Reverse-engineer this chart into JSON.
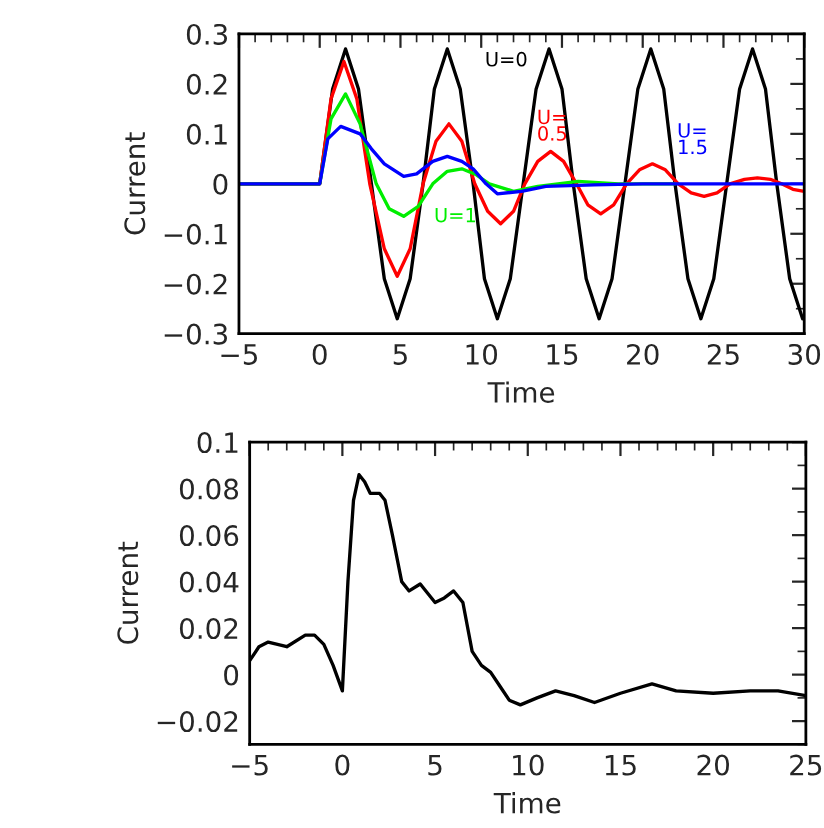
{
  "chart_data": [
    {
      "type": "line",
      "xlabel": "Time",
      "ylabel": "Current",
      "xlim": [
        -5,
        30
      ],
      "ylim": [
        -0.3,
        0.3
      ],
      "xticks": [
        {
          "value": -5,
          "label": "−5"
        },
        0,
        5,
        10,
        15,
        20,
        25,
        30
      ],
      "yticks": [
        {
          "value": -0.3,
          "label": "−0.3"
        },
        {
          "value": -0.2,
          "label": "−0.2"
        },
        {
          "value": -0.1,
          "label": "−0.1"
        },
        0,
        0.1,
        0.2,
        0.3
      ],
      "grid": false,
      "legend": false,
      "series": [
        {
          "name": "U=0",
          "color": "#000000",
          "x": [
            -5,
            0,
            0.8,
            1.6,
            2.4,
            3.2,
            4.0,
            4.8,
            5.6,
            6.4,
            7.1,
            7.9,
            8.7,
            9.5,
            10.2,
            11.0,
            11.8,
            12.6,
            13.4,
            14.2,
            15.0,
            15.7,
            16.5,
            17.3,
            18.1,
            18.9,
            19.7,
            20.5,
            21.3,
            22.0,
            22.8,
            23.6,
            24.4,
            25.2,
            26.0,
            26.8,
            27.6,
            28.3,
            29.1,
            29.9,
            30
          ],
          "values": [
            0,
            0,
            0.19,
            0.27,
            0.19,
            0,
            -0.19,
            -0.27,
            -0.19,
            0,
            0.19,
            0.27,
            0.19,
            0,
            -0.19,
            -0.27,
            -0.19,
            0,
            0.19,
            0.27,
            0.19,
            0,
            -0.19,
            -0.27,
            -0.19,
            0,
            0.19,
            0.27,
            0.19,
            0,
            -0.19,
            -0.27,
            -0.19,
            0,
            0.19,
            0.27,
            0.19,
            0,
            -0.19,
            -0.27,
            -0.265
          ]
        },
        {
          "name": "U=\n0.5",
          "color": "#ff0000",
          "x": [
            -5,
            0,
            0.7,
            1.5,
            2.3,
            3.1,
            4.0,
            4.8,
            5.6,
            6.4,
            7.2,
            8.0,
            8.8,
            9.6,
            10.4,
            11.2,
            12.0,
            12.7,
            13.5,
            14.3,
            15.1,
            15.9,
            16.6,
            17.4,
            18.2,
            19.0,
            19.8,
            20.6,
            21.4,
            22.2,
            23.0,
            23.8,
            24.6,
            25.4,
            26.3,
            27.1,
            27.9,
            28.6,
            29.3,
            30
          ],
          "values": [
            0,
            0,
            0.17,
            0.245,
            0.17,
            0,
            -0.13,
            -0.185,
            -0.13,
            0,
            0.085,
            0.12,
            0.085,
            0,
            -0.055,
            -0.08,
            -0.055,
            0,
            0.045,
            0.065,
            0.045,
            0,
            -0.042,
            -0.06,
            -0.042,
            0,
            0.028,
            0.04,
            0.028,
            0,
            -0.018,
            -0.025,
            -0.018,
            0,
            0.009,
            0.012,
            0.009,
            0,
            -0.011,
            -0.015
          ]
        },
        {
          "name": "U=1",
          "color": "#00ee00",
          "x": [
            -5,
            0,
            0.7,
            1.6,
            2.5,
            3.5,
            4.3,
            5.2,
            6.1,
            7.0,
            7.9,
            8.8,
            9.7,
            10.5,
            12.0,
            13.5,
            16.0,
            18.5,
            22
          ],
          "values": [
            0,
            0,
            0.13,
            0.18,
            0.12,
            0,
            -0.05,
            -0.065,
            -0.045,
            0,
            0.025,
            0.03,
            0.018,
            0,
            -0.015,
            -0.005,
            0.005,
            0,
            0
          ]
        },
        {
          "name": "U=\n1.5",
          "color": "#0000ff",
          "x": [
            -5,
            0,
            0.5,
            1.3,
            2.5,
            3.2,
            4.0,
            5.2,
            6.0,
            7.0,
            7.9,
            8.8,
            9.5,
            10.3,
            11.0,
            12.5,
            14.0,
            17.0,
            20.0,
            25.0,
            30
          ],
          "values": [
            0,
            0,
            0.09,
            0.115,
            0.1,
            0.07,
            0.04,
            0.015,
            0.02,
            0.045,
            0.055,
            0.045,
            0.03,
            0,
            -0.02,
            -0.015,
            -0.005,
            -0.002,
            0,
            0,
            0
          ]
        }
      ]
    },
    {
      "type": "line",
      "xlabel": "Time",
      "ylabel": "Current",
      "xlim": [
        -5,
        25
      ],
      "ylim": [
        -0.03,
        0.1
      ],
      "xticks": [
        {
          "value": -5,
          "label": "−5"
        },
        0,
        5,
        10,
        15,
        20,
        25
      ],
      "yticks": [
        {
          "value": -0.02,
          "label": "−0.02"
        },
        0,
        0.02,
        0.04,
        0.06,
        0.08,
        0.1
      ],
      "grid": false,
      "legend": false,
      "series": [
        {
          "color": "#000000",
          "x": [
            -5,
            -4.5,
            -4,
            -3,
            -2,
            -1.5,
            -1,
            -0.5,
            0,
            0.3,
            0.6,
            0.9,
            1.2,
            1.5,
            2,
            2.3,
            2.7,
            3.2,
            3.6,
            4.2,
            5,
            5.5,
            6,
            6.5,
            7,
            7.5,
            8,
            8.5,
            9,
            9.6,
            10.5,
            11.5,
            12.5,
            13.6,
            15,
            16.7,
            18,
            20,
            22,
            23.5,
            25
          ],
          "values": [
            0.006,
            0.012,
            0.014,
            0.012,
            0.017,
            0.017,
            0.013,
            0.004,
            -0.007,
            0.04,
            0.075,
            0.086,
            0.083,
            0.078,
            0.078,
            0.075,
            0.06,
            0.04,
            0.036,
            0.039,
            0.031,
            0.033,
            0.036,
            0.031,
            0.01,
            0.004,
            0.001,
            -0.005,
            -0.011,
            -0.013,
            -0.01,
            -0.007,
            -0.009,
            -0.012,
            -0.008,
            -0.004,
            -0.007,
            -0.008,
            -0.007,
            -0.007,
            -0.009
          ]
        }
      ]
    }
  ]
}
